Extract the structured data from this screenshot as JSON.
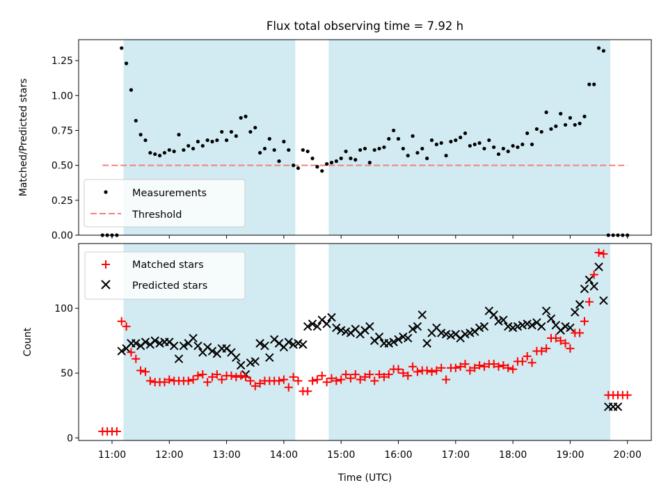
{
  "chart_data": [
    {
      "type": "scatter",
      "title": "Flux total observing time = 7.92 h",
      "ylabel": "Matched/Predicted stars",
      "xlabel": "",
      "ylim": [
        0,
        1.4
      ],
      "xlim": [
        "10:25",
        "20:25"
      ],
      "yticks": [
        "0.00",
        "0.25",
        "0.50",
        "0.75",
        "1.00",
        "1.25"
      ],
      "grid": false,
      "legend_position": "lower-left",
      "shaded_intervals": [
        [
          "11:12",
          "14:12"
        ],
        [
          "14:47",
          "19:42"
        ]
      ],
      "shade_color": "#add8e6",
      "series": [
        {
          "name": "Measurements",
          "marker": "dot",
          "color": "#000000",
          "x": [
            "10:50",
            "10:55",
            "11:00",
            "11:05",
            "11:10",
            "11:15",
            "11:20",
            "11:25",
            "11:30",
            "11:35",
            "11:40",
            "11:45",
            "11:50",
            "11:55",
            "12:00",
            "12:05",
            "12:10",
            "12:15",
            "12:20",
            "12:25",
            "12:30",
            "12:35",
            "12:40",
            "12:45",
            "12:50",
            "12:55",
            "13:00",
            "13:05",
            "13:10",
            "13:15",
            "13:20",
            "13:25",
            "13:30",
            "13:35",
            "13:40",
            "13:45",
            "13:50",
            "13:55",
            "14:00",
            "14:05",
            "14:10",
            "14:15",
            "14:20",
            "14:25",
            "14:30",
            "14:35",
            "14:40",
            "14:45",
            "14:50",
            "14:55",
            "15:00",
            "15:05",
            "15:10",
            "15:15",
            "15:20",
            "15:25",
            "15:30",
            "15:35",
            "15:40",
            "15:45",
            "15:50",
            "15:55",
            "16:00",
            "16:05",
            "16:10",
            "16:15",
            "16:20",
            "16:25",
            "16:30",
            "16:35",
            "16:40",
            "16:45",
            "16:50",
            "16:55",
            "17:00",
            "17:05",
            "17:10",
            "17:15",
            "17:20",
            "17:25",
            "17:30",
            "17:35",
            "17:40",
            "17:45",
            "17:50",
            "17:55",
            "18:00",
            "18:05",
            "18:10",
            "18:15",
            "18:20",
            "18:25",
            "18:30",
            "18:35",
            "18:40",
            "18:45",
            "18:50",
            "18:55",
            "19:00",
            "19:05",
            "19:10",
            "19:15",
            "19:20",
            "19:25",
            "19:30",
            "19:35",
            "19:40",
            "19:45",
            "19:50",
            "19:55",
            "20:00"
          ],
          "y": [
            0,
            0,
            0,
            0,
            1.34,
            1.23,
            1.04,
            0.82,
            0.72,
            0.68,
            0.59,
            0.58,
            0.57,
            0.59,
            0.61,
            0.6,
            0.72,
            0.61,
            0.64,
            0.62,
            0.67,
            0.64,
            0.68,
            0.67,
            0.68,
            0.74,
            0.68,
            0.74,
            0.71,
            0.84,
            0.85,
            0.74,
            0.77,
            0.59,
            0.62,
            0.69,
            0.61,
            0.53,
            0.67,
            0.61,
            0.5,
            0.48,
            0.61,
            0.6,
            0.55,
            0.49,
            0.46,
            0.51,
            0.52,
            0.53,
            0.55,
            0.6,
            0.55,
            0.54,
            0.61,
            0.62,
            0.52,
            0.61,
            0.62,
            0.63,
            0.69,
            0.75,
            0.69,
            0.62,
            0.57,
            0.71,
            0.59,
            0.62,
            0.55,
            0.68,
            0.65,
            0.66,
            0.57,
            0.67,
            0.68,
            0.7,
            0.73,
            0.64,
            0.65,
            0.66,
            0.62,
            0.68,
            0.63,
            0.58,
            0.62,
            0.6,
            0.64,
            0.63,
            0.65,
            0.73,
            0.65,
            0.76,
            0.74,
            0.88,
            0.76,
            0.78,
            0.87,
            0.79,
            0.84,
            0.79,
            0.8,
            0.85,
            1.08,
            1.08,
            1.34,
            1.32,
            0,
            0,
            0,
            0,
            0
          ]
        },
        {
          "name": "Threshold",
          "marker": "dashed-line",
          "color": "#f08080",
          "x": [
            "10:50",
            "20:00"
          ],
          "y": [
            0.5,
            0.5
          ]
        }
      ]
    },
    {
      "type": "scatter",
      "title": "",
      "ylabel": "Count",
      "xlabel": "Time (UTC)",
      "ylim": [
        -2,
        150
      ],
      "xlim": [
        "10:25",
        "20:25"
      ],
      "yticks": [
        "0",
        "50",
        "100"
      ],
      "xticks": [
        "11:00",
        "12:00",
        "13:00",
        "14:00",
        "15:00",
        "16:00",
        "17:00",
        "18:00",
        "19:00",
        "20:00"
      ],
      "grid": false,
      "legend_position": "top-left",
      "shaded_intervals": [
        [
          "11:12",
          "14:12"
        ],
        [
          "14:47",
          "19:42"
        ]
      ],
      "shade_color": "#add8e6",
      "series": [
        {
          "name": "Matched stars",
          "marker": "plus",
          "color": "#ff0000",
          "x": [
            "10:50",
            "10:55",
            "11:00",
            "11:05",
            "11:10",
            "11:15",
            "11:20",
            "11:25",
            "11:30",
            "11:35",
            "11:40",
            "11:45",
            "11:50",
            "11:55",
            "12:00",
            "12:05",
            "12:10",
            "12:15",
            "12:20",
            "12:25",
            "12:30",
            "12:35",
            "12:40",
            "12:45",
            "12:50",
            "12:55",
            "13:00",
            "13:05",
            "13:10",
            "13:15",
            "13:20",
            "13:25",
            "13:30",
            "13:35",
            "13:40",
            "13:45",
            "13:50",
            "13:55",
            "14:00",
            "14:05",
            "14:10",
            "14:15",
            "14:20",
            "14:25",
            "14:30",
            "14:35",
            "14:40",
            "14:45",
            "14:50",
            "14:55",
            "15:00",
            "15:05",
            "15:10",
            "15:15",
            "15:20",
            "15:25",
            "15:30",
            "15:35",
            "15:40",
            "15:45",
            "15:50",
            "15:55",
            "16:00",
            "16:05",
            "16:10",
            "16:15",
            "16:20",
            "16:25",
            "16:30",
            "16:35",
            "16:40",
            "16:45",
            "16:50",
            "16:55",
            "17:00",
            "17:05",
            "17:10",
            "17:15",
            "17:20",
            "17:25",
            "17:30",
            "17:35",
            "17:40",
            "17:45",
            "17:50",
            "17:55",
            "18:00",
            "18:05",
            "18:10",
            "18:15",
            "18:20",
            "18:25",
            "18:30",
            "18:35",
            "18:40",
            "18:45",
            "18:50",
            "18:55",
            "19:00",
            "19:05",
            "19:10",
            "19:15",
            "19:20",
            "19:25",
            "19:30",
            "19:35",
            "19:40",
            "19:45",
            "19:50",
            "19:55",
            "20:00"
          ],
          "y": [
            5,
            5,
            5,
            5,
            90,
            86,
            66,
            61,
            52,
            51,
            44,
            43,
            43,
            43,
            45,
            44,
            44,
            44,
            44,
            45,
            48,
            49,
            43,
            47,
            49,
            45,
            48,
            48,
            47,
            48,
            47,
            44,
            40,
            42,
            44,
            44,
            44,
            44,
            45,
            39,
            47,
            44,
            36,
            36,
            44,
            45,
            48,
            43,
            46,
            44,
            45,
            49,
            46,
            49,
            45,
            47,
            49,
            44,
            49,
            47,
            49,
            53,
            53,
            50,
            48,
            55,
            51,
            52,
            52,
            51,
            52,
            54,
            45,
            54,
            54,
            55,
            57,
            52,
            54,
            56,
            55,
            57,
            57,
            55,
            56,
            54,
            53,
            59,
            59,
            63,
            58,
            67,
            67,
            69,
            77,
            77,
            75,
            73,
            69,
            81,
            81,
            90,
            105,
            126,
            143,
            142,
            33,
            33,
            33,
            33,
            33
          ]
        },
        {
          "name": "Predicted stars",
          "marker": "x",
          "color": "#000000",
          "x": [
            "11:10",
            "11:15",
            "11:20",
            "11:25",
            "11:30",
            "11:35",
            "11:40",
            "11:45",
            "11:50",
            "11:55",
            "12:00",
            "12:05",
            "12:10",
            "12:15",
            "12:20",
            "12:25",
            "12:30",
            "12:35",
            "12:40",
            "12:45",
            "12:50",
            "12:55",
            "13:00",
            "13:05",
            "13:10",
            "13:15",
            "13:20",
            "13:25",
            "13:30",
            "13:35",
            "13:40",
            "13:45",
            "13:50",
            "13:55",
            "14:00",
            "14:05",
            "14:10",
            "14:15",
            "14:20",
            "14:25",
            "14:30",
            "14:35",
            "14:40",
            "14:45",
            "14:50",
            "14:55",
            "15:00",
            "15:05",
            "15:10",
            "15:15",
            "15:20",
            "15:25",
            "15:30",
            "15:35",
            "15:40",
            "15:45",
            "15:50",
            "15:55",
            "16:00",
            "16:05",
            "16:10",
            "16:15",
            "16:20",
            "16:25",
            "16:30",
            "16:35",
            "16:40",
            "16:45",
            "16:50",
            "16:55",
            "17:00",
            "17:05",
            "17:10",
            "17:15",
            "17:20",
            "17:25",
            "17:30",
            "17:35",
            "17:40",
            "17:45",
            "17:50",
            "17:55",
            "18:00",
            "18:05",
            "18:10",
            "18:15",
            "18:20",
            "18:25",
            "18:30",
            "18:35",
            "18:40",
            "18:45",
            "18:50",
            "18:55",
            "19:00",
            "19:05",
            "19:10",
            "19:15",
            "19:20",
            "19:25",
            "19:30",
            "19:35",
            "19:40",
            "19:45",
            "19:50"
          ],
          "y": [
            67,
            69,
            73,
            73,
            71,
            74,
            72,
            75,
            73,
            74,
            74,
            71,
            61,
            71,
            73,
            77,
            71,
            66,
            70,
            67,
            65,
            69,
            69,
            66,
            62,
            56,
            49,
            58,
            59,
            73,
            71,
            62,
            76,
            73,
            70,
            74,
            72,
            73,
            72,
            86,
            88,
            86,
            91,
            88,
            93,
            85,
            83,
            82,
            81,
            84,
            80,
            83,
            86,
            75,
            78,
            73,
            73,
            74,
            76,
            78,
            77,
            84,
            86,
            95,
            73,
            81,
            85,
            81,
            80,
            79,
            80,
            77,
            80,
            81,
            82,
            85,
            86,
            98,
            95,
            90,
            91,
            86,
            85,
            86,
            87,
            88,
            87,
            89,
            86,
            98,
            92,
            87,
            83,
            86,
            85,
            97,
            103,
            115,
            122,
            117,
            132,
            106,
            24,
            24,
            24
          ]
        }
      ]
    }
  ]
}
